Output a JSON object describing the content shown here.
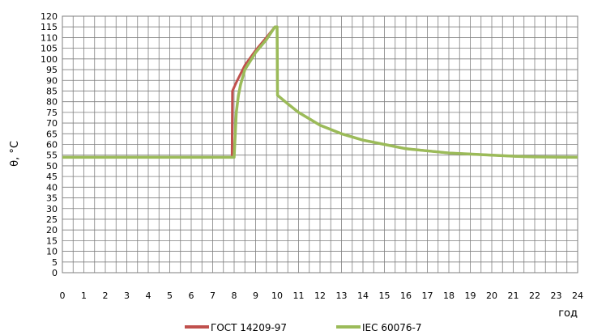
{
  "chart_data": {
    "type": "line",
    "xlabel": "год",
    "ylabel": "θ, °C",
    "xlim": [
      0,
      24
    ],
    "ylim": [
      0,
      120
    ],
    "x_ticks": [
      0,
      1,
      2,
      3,
      4,
      5,
      6,
      7,
      8,
      9,
      10,
      11,
      12,
      13,
      14,
      15,
      16,
      17,
      18,
      19,
      20,
      21,
      22,
      23,
      24
    ],
    "y_ticks": [
      0,
      5,
      10,
      15,
      20,
      25,
      30,
      35,
      40,
      45,
      50,
      55,
      60,
      65,
      70,
      75,
      80,
      85,
      90,
      95,
      100,
      105,
      110,
      115,
      120
    ],
    "grid": true,
    "legend_position": "bottom",
    "series": [
      {
        "name": "ГОСТ 14209-97",
        "color": "#c0504d",
        "points": [
          [
            0,
            54
          ],
          [
            7.9,
            54
          ],
          [
            7.92,
            85
          ],
          [
            8.1,
            89
          ],
          [
            8.3,
            93
          ],
          [
            8.5,
            97
          ],
          [
            9.0,
            104
          ],
          [
            9.5,
            110
          ],
          [
            9.9,
            115
          ],
          [
            10,
            115
          ],
          [
            10.02,
            83
          ],
          [
            10.5,
            79
          ],
          [
            11,
            75
          ],
          [
            11.5,
            72
          ],
          [
            12,
            69
          ],
          [
            13,
            65
          ],
          [
            14,
            62
          ],
          [
            15,
            60
          ],
          [
            16,
            58
          ],
          [
            17,
            57
          ],
          [
            18,
            56
          ],
          [
            19,
            55.5
          ],
          [
            20,
            55
          ],
          [
            21,
            54.5
          ],
          [
            22,
            54.2
          ],
          [
            23,
            54.1
          ],
          [
            24,
            54
          ]
        ]
      },
      {
        "name": "IEC 60076-7",
        "color": "#9bbb59",
        "points": [
          [
            0,
            54
          ],
          [
            8.0,
            54
          ],
          [
            8.1,
            75
          ],
          [
            8.2,
            83
          ],
          [
            8.3,
            88
          ],
          [
            8.5,
            95
          ],
          [
            9.0,
            103
          ],
          [
            9.5,
            109
          ],
          [
            9.9,
            115
          ],
          [
            10,
            115
          ],
          [
            10.02,
            83
          ],
          [
            10.5,
            79
          ],
          [
            11,
            75
          ],
          [
            11.5,
            72
          ],
          [
            12,
            69
          ],
          [
            13,
            65
          ],
          [
            14,
            62
          ],
          [
            15,
            60
          ],
          [
            16,
            58
          ],
          [
            17,
            57
          ],
          [
            18,
            56
          ],
          [
            19,
            55.5
          ],
          [
            20,
            55
          ],
          [
            21,
            54.5
          ],
          [
            22,
            54.2
          ],
          [
            23,
            54.1
          ],
          [
            24,
            54
          ]
        ]
      }
    ]
  }
}
